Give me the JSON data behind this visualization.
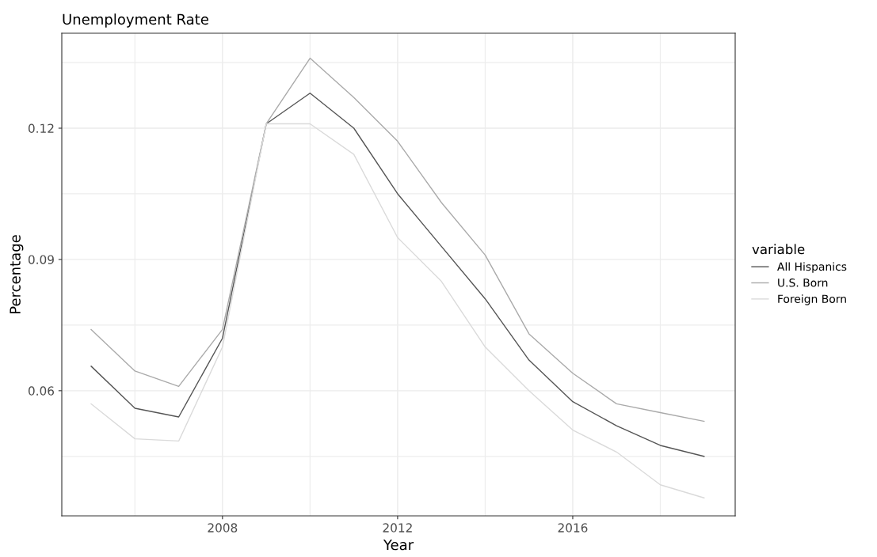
{
  "chart_data": {
    "type": "line",
    "title": "Unemployment Rate",
    "xlabel": "Year",
    "ylabel": "Percentage",
    "legend_title": "variable",
    "x": [
      2005,
      2006,
      2007,
      2008,
      2009,
      2010,
      2011,
      2012,
      2013,
      2014,
      2015,
      2016,
      2017,
      2018,
      2019
    ],
    "series": [
      {
        "name": "All Hispanics",
        "color": "#555555",
        "values": [
          0.0656,
          0.056,
          0.054,
          0.072,
          0.121,
          0.128,
          0.12,
          0.105,
          0.093,
          0.081,
          0.067,
          0.0575,
          0.052,
          0.0475,
          0.045
        ]
      },
      {
        "name": "U.S. Born",
        "color": "#aaaaaa",
        "values": [
          0.074,
          0.0645,
          0.061,
          0.074,
          0.121,
          0.136,
          0.127,
          0.117,
          0.103,
          0.091,
          0.073,
          0.064,
          0.057,
          0.055,
          0.053
        ]
      },
      {
        "name": "Foreign Born",
        "color": "#dadada",
        "values": [
          0.057,
          0.049,
          0.0485,
          0.07,
          0.121,
          0.121,
          0.114,
          0.095,
          0.085,
          0.07,
          0.06,
          0.051,
          0.046,
          0.0385,
          0.0355
        ]
      }
    ],
    "xlim": [
      2004.33,
      2019.71
    ],
    "ylim": [
      0.0314,
      0.1417
    ],
    "xticks": [
      {
        "value": 2006,
        "label": null
      },
      2008,
      {
        "value": 2010,
        "label": null
      },
      2012,
      {
        "value": 2014,
        "label": null
      },
      2016,
      {
        "value": 2018,
        "label": null
      }
    ],
    "yticks": [
      {
        "value": 0.045,
        "label": null
      },
      {
        "value": 0.06,
        "label": "0.06"
      },
      {
        "value": 0.075,
        "label": null
      },
      {
        "value": 0.09,
        "label": "0.09"
      },
      {
        "value": 0.105,
        "label": null
      },
      {
        "value": 0.12,
        "label": "0.12"
      },
      {
        "value": 0.135,
        "label": null
      }
    ],
    "grid": true,
    "legend": "right",
    "marker": "none",
    "line_style": "solid"
  }
}
